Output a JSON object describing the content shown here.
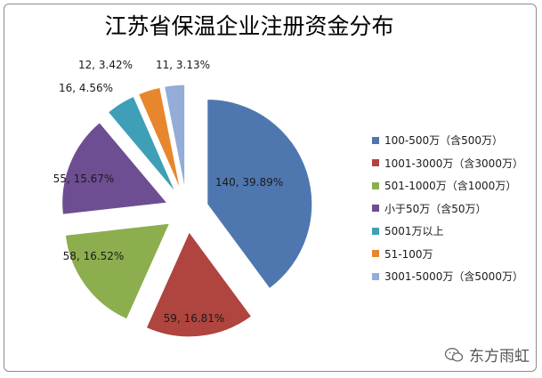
{
  "chart_data": {
    "type": "pie",
    "title": "江苏省保温企业注册资金分布",
    "slices": [
      {
        "name": "100-500万（含500万）",
        "value": 140,
        "percent": 39.89,
        "label": "140, 39.89%",
        "color": "#4f77af"
      },
      {
        "name": "1001-3000万（含3000万）",
        "value": 59,
        "percent": 16.81,
        "label": "59, 16.81%",
        "color": "#b0443f"
      },
      {
        "name": "501-1000万（含1000万）",
        "value": 58,
        "percent": 16.52,
        "label": "58, 16.52%",
        "color": "#8cae4f"
      },
      {
        "name": "小于50万（含50万）",
        "value": 55,
        "percent": 15.67,
        "label": "55, 15.67%",
        "color": "#6d4e92"
      },
      {
        "name": "5001万以上",
        "value": 16,
        "percent": 4.56,
        "label": "16, 4.56%",
        "color": "#3f9fb7"
      },
      {
        "name": "51-100万",
        "value": 12,
        "percent": 3.42,
        "label": "12, 3.42%",
        "color": "#e8862e"
      },
      {
        "name": "3001-5000万（含5000万）",
        "value": 11,
        "percent": 3.13,
        "label": "11, 3.13%",
        "color": "#93acd8"
      }
    ],
    "legend_position": "right"
  },
  "watermark": {
    "text": "东方雨虹",
    "icon": "wechat-icon"
  }
}
